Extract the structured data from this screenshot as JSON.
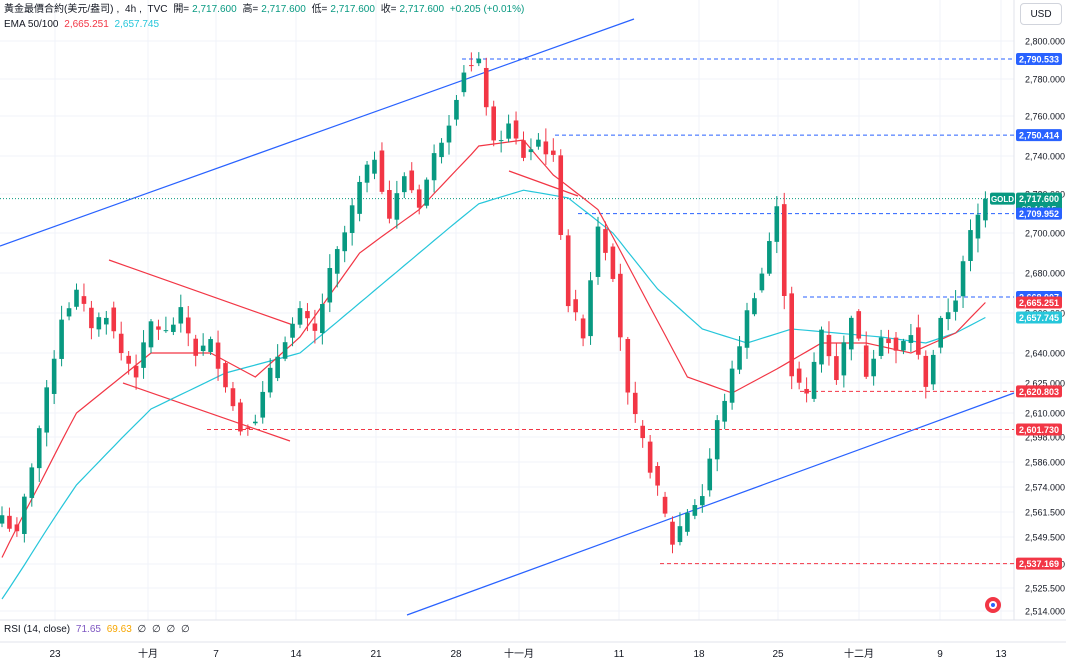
{
  "header": {
    "symbol": "黃金最價合約(美元/盎司)",
    "interval": "4h",
    "source": "TVC",
    "open_label": "開=",
    "open": "2,717.600",
    "high_label": "高=",
    "high": "2,717.600",
    "low_label": "低=",
    "low": "2,717.600",
    "close_label": "收=",
    "close": "2,717.600",
    "change": "+0.205 (+0.01%)",
    "ema_label": "EMA 50/100",
    "ema50": "2,665.251",
    "ema100": "2,657.745"
  },
  "currency_button": "USD",
  "rsi": {
    "label": "RSI (14, close)",
    "value": "71.65",
    "ma": "69.63",
    "extra": [
      "∅",
      "∅",
      "∅",
      "∅"
    ]
  },
  "colors": {
    "up": "#089981",
    "down": "#f23645",
    "ema50": "#f23645",
    "ema100": "#26c6da",
    "trendline": "#2962ff"
  },
  "chart_data": {
    "type": "candlestick",
    "title": "黃金最價合約(美元/盎司)",
    "interval": "4h",
    "y_axis": {
      "ticks": [
        2514.0,
        2525.5,
        2537.0,
        2549.5,
        2561.5,
        2574.0,
        2586.0,
        2598.0,
        2610.0,
        2625.0,
        2640.0,
        2660.0,
        2680.0,
        2700.0,
        2720.0,
        2740.0,
        2760.0,
        2780.0,
        2800.0
      ],
      "tick_labels": [
        "2,514.000",
        "2,525.500",
        "2,537.000",
        "2,549.500",
        "2,561.500",
        "2,574.000",
        "2,586.000",
        "2,598.000",
        "2,610.000",
        "2,625.000",
        "2,640.000",
        "2,660.000",
        "2,680.000",
        "2,700.000",
        "2,720.000",
        "2,740.000",
        "2,760.000",
        "2,780.000",
        "2,800.000"
      ]
    },
    "x_axis": {
      "labels": [
        "23",
        "十月",
        "7",
        "14",
        "21",
        "28",
        "十一月",
        "11",
        "18",
        "25",
        "十二月",
        "9",
        "13"
      ]
    },
    "price_markers": [
      {
        "value": 2790.533,
        "label": "2,790.533",
        "color": "#2962ff",
        "line": "dashed"
      },
      {
        "value": 2750.414,
        "label": "2,750.414",
        "color": "#2962ff",
        "line": "dashed"
      },
      {
        "value": 2717.6,
        "label": "2,717.600",
        "sub": "03:12:15",
        "tag": "GOLD",
        "color": "#089981",
        "line": "dotted"
      },
      {
        "value": 2709.952,
        "label": "2,709.952",
        "color": "#2962ff",
        "line": "dashed"
      },
      {
        "value": 2668.007,
        "label": "2,668.007",
        "color": "#2962ff",
        "line": "dashed"
      },
      {
        "value": 2665.251,
        "label": "2,665.251",
        "color": "#f23645",
        "line": "none"
      },
      {
        "value": 2657.745,
        "label": "2,657.745",
        "color": "#26c6da",
        "line": "none"
      },
      {
        "value": 2620.803,
        "label": "2,620.803",
        "color": "#f23645",
        "line": "dashed"
      },
      {
        "value": 2601.73,
        "label": "2,601.730",
        "color": "#f23645",
        "line": "dashed"
      },
      {
        "value": 2537.169,
        "label": "2,537.169",
        "color": "#f23645",
        "line": "dashed"
      }
    ],
    "close_path": [
      [
        0,
        2560
      ],
      [
        2,
        2550
      ],
      [
        4,
        2585
      ],
      [
        6,
        2620
      ],
      [
        8,
        2658
      ],
      [
        10,
        2670
      ],
      [
        12,
        2654
      ],
      [
        14,
        2660
      ],
      [
        16,
        2640
      ],
      [
        18,
        2630
      ],
      [
        20,
        2655
      ],
      [
        22,
        2650
      ],
      [
        24,
        2660
      ],
      [
        26,
        2640
      ],
      [
        28,
        2645
      ],
      [
        30,
        2625
      ],
      [
        32,
        2602
      ],
      [
        34,
        2608
      ],
      [
        36,
        2630
      ],
      [
        38,
        2648
      ],
      [
        40,
        2660
      ],
      [
        42,
        2650
      ],
      [
        44,
        2680
      ],
      [
        46,
        2700
      ],
      [
        48,
        2725
      ],
      [
        50,
        2740
      ],
      [
        52,
        2708
      ],
      [
        54,
        2730
      ],
      [
        56,
        2715
      ],
      [
        58,
        2740
      ],
      [
        60,
        2758
      ],
      [
        62,
        2785
      ],
      [
        64,
        2788
      ],
      [
        66,
        2745
      ],
      [
        68,
        2755
      ],
      [
        70,
        2740
      ],
      [
        72,
        2748
      ],
      [
        74,
        2738
      ],
      [
        76,
        2665
      ],
      [
        78,
        2650
      ],
      [
        80,
        2705
      ],
      [
        82,
        2680
      ],
      [
        84,
        2618
      ],
      [
        86,
        2595
      ],
      [
        88,
        2572
      ],
      [
        90,
        2547
      ],
      [
        92,
        2562
      ],
      [
        94,
        2570
      ],
      [
        96,
        2605
      ],
      [
        98,
        2630
      ],
      [
        100,
        2660
      ],
      [
        102,
        2680
      ],
      [
        104,
        2712
      ],
      [
        106,
        2630
      ],
      [
        108,
        2618
      ],
      [
        110,
        2652
      ],
      [
        112,
        2628
      ],
      [
        114,
        2660
      ],
      [
        116,
        2630
      ],
      [
        118,
        2650
      ],
      [
        120,
        2640
      ],
      [
        122,
        2650
      ],
      [
        124,
        2625
      ],
      [
        126,
        2655
      ],
      [
        128,
        2668
      ],
      [
        130,
        2700
      ],
      [
        132,
        2717.6
      ]
    ],
    "ema50_path": [
      [
        0,
        2540
      ],
      [
        10,
        2610
      ],
      [
        20,
        2640
      ],
      [
        28,
        2640
      ],
      [
        34,
        2628
      ],
      [
        40,
        2648
      ],
      [
        48,
        2690
      ],
      [
        56,
        2712
      ],
      [
        64,
        2745
      ],
      [
        70,
        2748
      ],
      [
        74,
        2730
      ],
      [
        80,
        2712
      ],
      [
        86,
        2670
      ],
      [
        92,
        2628
      ],
      [
        98,
        2620
      ],
      [
        104,
        2632
      ],
      [
        110,
        2645
      ],
      [
        116,
        2645
      ],
      [
        122,
        2640
      ],
      [
        128,
        2650
      ],
      [
        132,
        2665.251
      ]
    ],
    "ema100_path": [
      [
        0,
        2520
      ],
      [
        10,
        2575
      ],
      [
        20,
        2612
      ],
      [
        30,
        2630
      ],
      [
        40,
        2640
      ],
      [
        48,
        2665
      ],
      [
        56,
        2690
      ],
      [
        64,
        2715
      ],
      [
        70,
        2722
      ],
      [
        76,
        2718
      ],
      [
        82,
        2700
      ],
      [
        88,
        2672
      ],
      [
        94,
        2652
      ],
      [
        100,
        2645
      ],
      [
        106,
        2652
      ],
      [
        112,
        2650
      ],
      [
        118,
        2648
      ],
      [
        124,
        2645
      ],
      [
        128,
        2650
      ],
      [
        132,
        2657.745
      ]
    ]
  }
}
